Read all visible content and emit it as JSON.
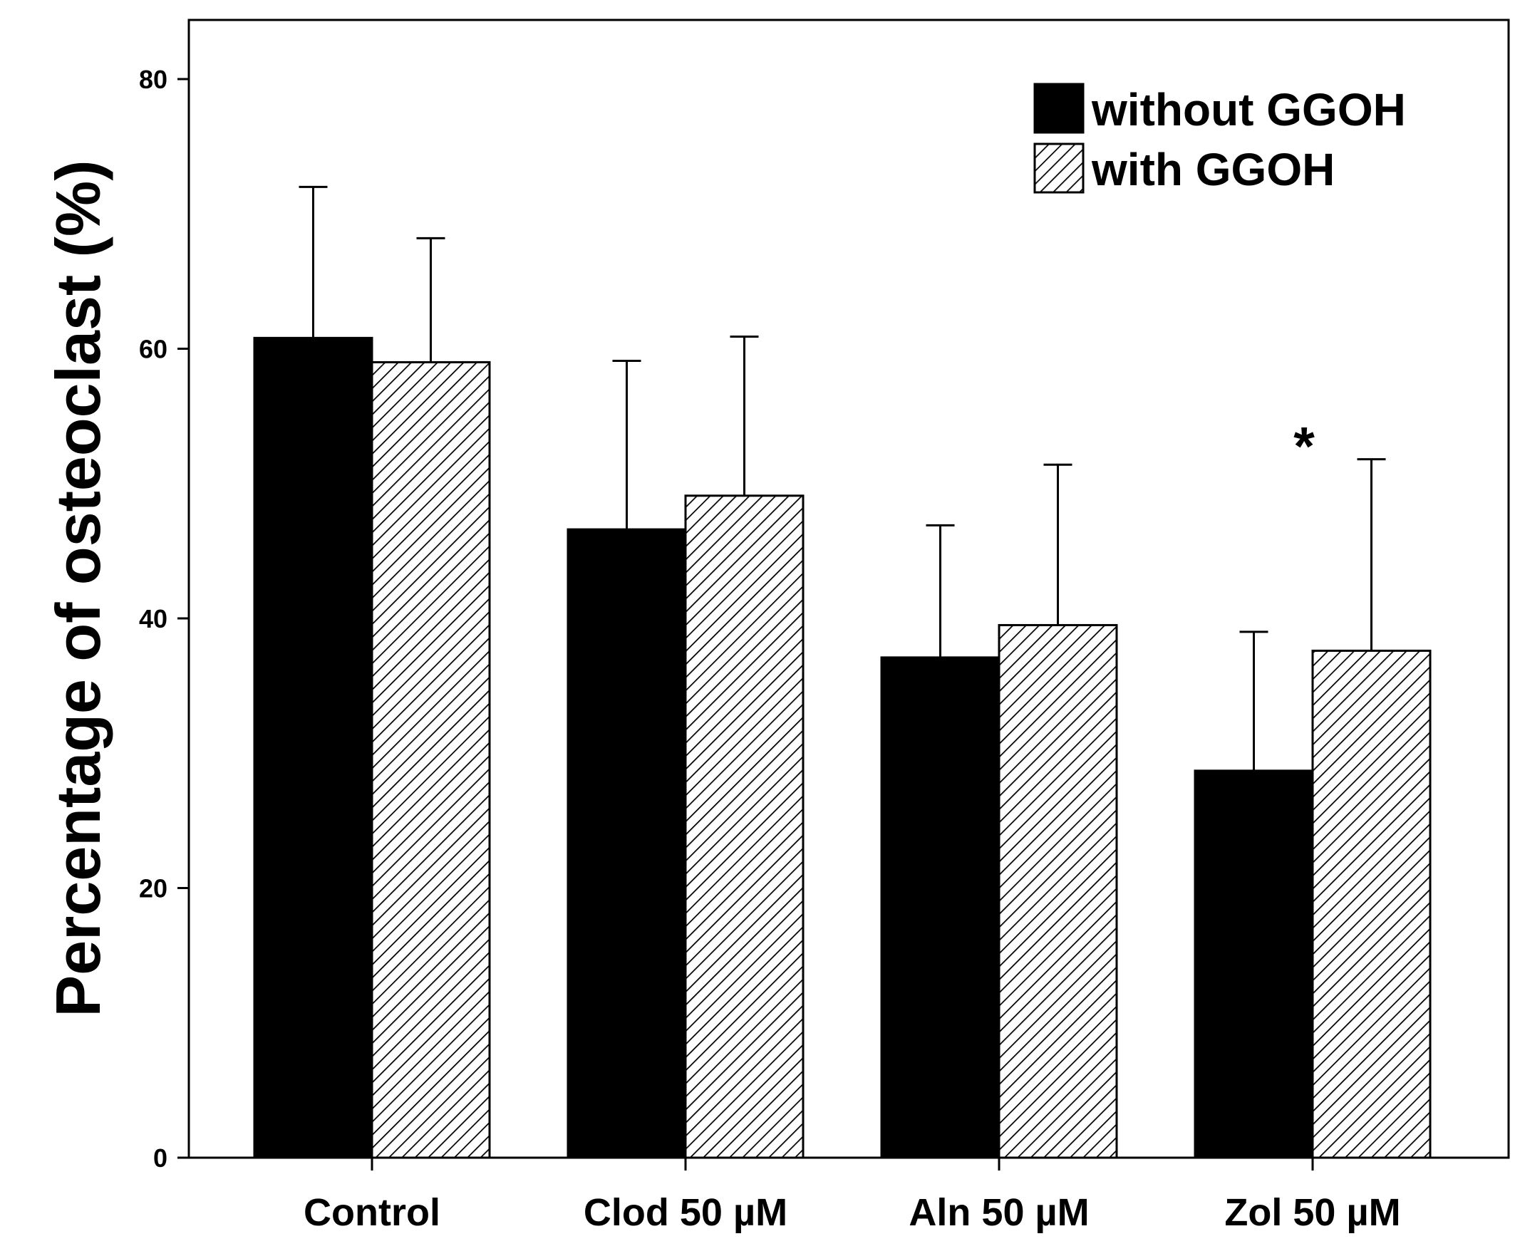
{
  "chart_data": {
    "type": "bar",
    "title": "",
    "xlabel": "",
    "ylabel": "Percentage of osteoclast (%)",
    "ylim": [
      0,
      80
    ],
    "yticks": [
      0,
      20,
      40,
      60,
      80
    ],
    "grid": false,
    "legend_position": "top-right",
    "categories": [
      "Control",
      "Clod 50 µM",
      "Aln 50 µM",
      "Zol 50 µM"
    ],
    "series": [
      {
        "name": "without GGOH",
        "fill": "solid",
        "color": "#000000",
        "values": [
          60.8,
          46.6,
          37.1,
          28.7
        ],
        "error_upper": [
          72.0,
          59.1,
          46.9,
          39.0
        ]
      },
      {
        "name": "with GGOH",
        "fill": "hatched",
        "color": "#ffffff",
        "values": [
          59.0,
          49.1,
          39.5,
          37.6
        ],
        "error_upper": [
          68.2,
          60.9,
          51.4,
          51.8
        ]
      }
    ],
    "annotations": [
      {
        "text": "*",
        "category": "Zol 50 µM",
        "y": 53.5
      }
    ]
  }
}
